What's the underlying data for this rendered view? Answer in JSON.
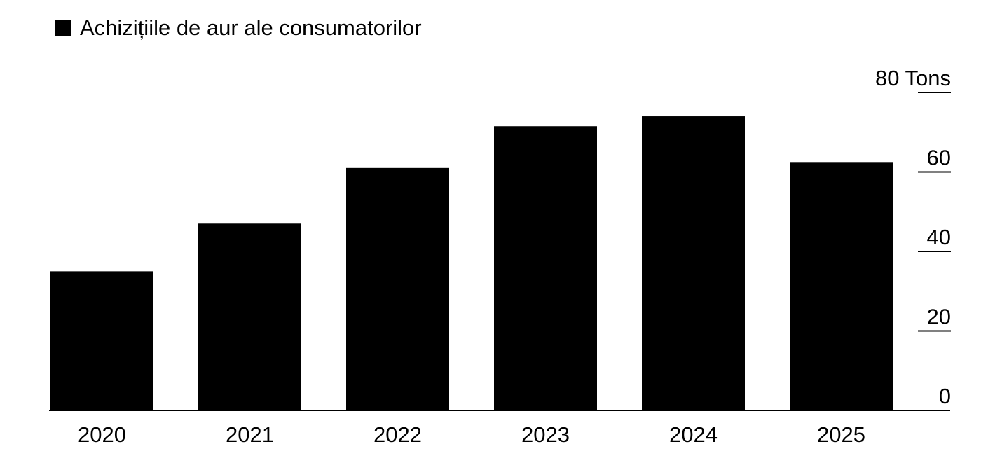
{
  "legend": {
    "label": "Achizițiile de aur ale consumatorilor",
    "color": "#000000"
  },
  "chart_data": {
    "type": "bar",
    "categories": [
      "2020",
      "2021",
      "2022",
      "2023",
      "2024",
      "2025"
    ],
    "series": [
      {
        "name": "Achizițiile de aur ale consumatorilor",
        "values": [
          35,
          47,
          61,
          71.5,
          74,
          62.5
        ]
      }
    ],
    "y_ticks": [
      "0",
      "20",
      "40",
      "60",
      "80"
    ],
    "y_unit": "Tons",
    "ylim": [
      0,
      80
    ],
    "axis_position": "right",
    "grid": false,
    "legend_position": "top-left",
    "bar_color": "#000000"
  }
}
